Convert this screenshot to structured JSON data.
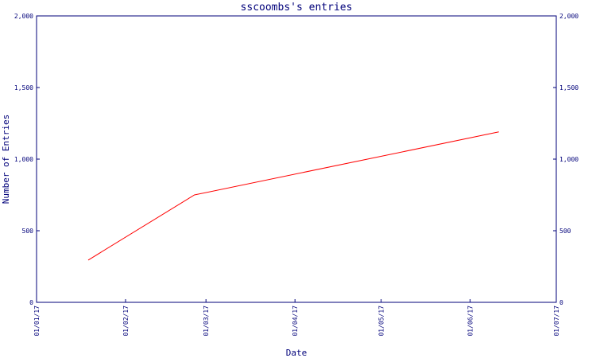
{
  "chart_data": {
    "type": "line",
    "title": "sscoombs's entries",
    "xlabel": "Date",
    "ylabel": "Number of Entries",
    "x_ticks": [
      "01/01/17",
      "01/02/17",
      "01/03/17",
      "01/04/17",
      "01/05/17",
      "01/06/17",
      "01/07/17"
    ],
    "y_ticks": [
      0,
      500,
      1000,
      1500,
      2000
    ],
    "y_tick_labels": [
      "0",
      "500",
      "1,000",
      "1,500",
      "2,000"
    ],
    "ylim": [
      0,
      2000
    ],
    "xlim": [
      "2017-01-01",
      "2017-07-01"
    ],
    "grid": false,
    "legend": "none",
    "colors": {
      "series": "#ff0000",
      "axis": "#00007a",
      "text": "#00007a"
    },
    "series": [
      {
        "points": [
          {
            "x": "2017-01-19",
            "y": 295
          },
          {
            "x": "2017-02-25",
            "y": 750
          },
          {
            "x": "2017-06-11",
            "y": 1190
          }
        ]
      }
    ]
  }
}
